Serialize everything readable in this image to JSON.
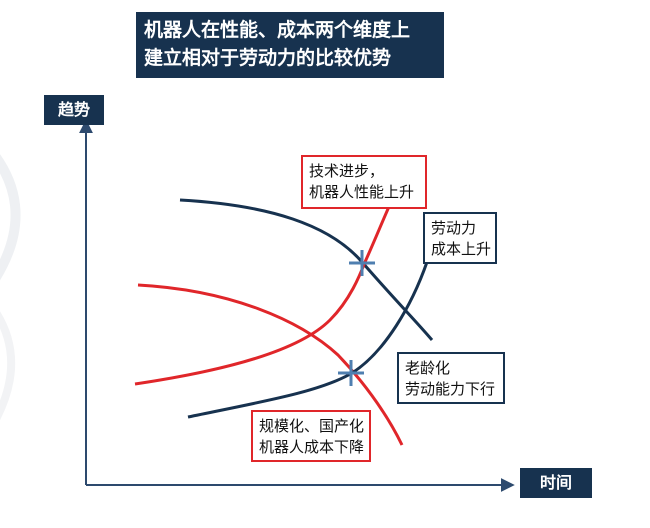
{
  "title": {
    "line1": "机器人在性能、成本两个维度上",
    "line2": "建立相对于劳动力的比较优势"
  },
  "axes": {
    "y_label": "趋势",
    "x_label": "时间"
  },
  "annotations": {
    "tech": {
      "line1": "技术进步，",
      "line2": "机器人性能上升"
    },
    "labor_cost": {
      "line1": "劳动力",
      "line2": "成本上升"
    },
    "aging": {
      "line1": "老龄化",
      "line2": "劳动能力下行"
    },
    "scale": {
      "line1": "规模化、国产化",
      "line2": "机器人成本下降"
    }
  },
  "colors": {
    "navy": "#17324f",
    "red": "#e0262a",
    "axis": "#2d4a6e",
    "marker": "#4f7fb0"
  }
}
